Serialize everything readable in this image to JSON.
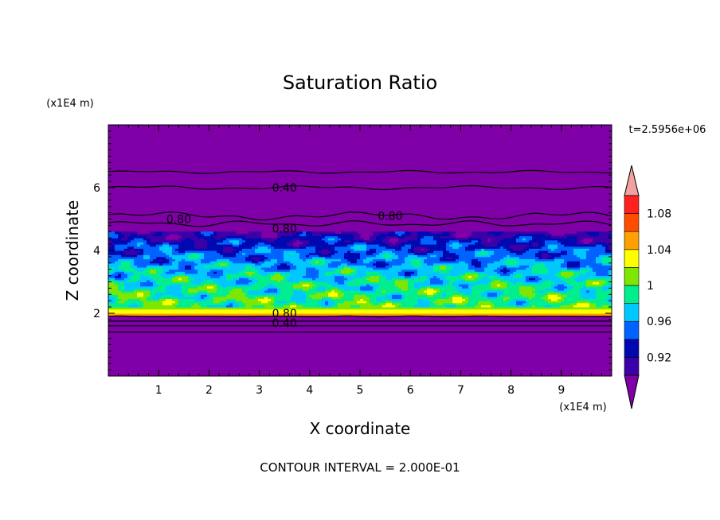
{
  "chart_data": {
    "type": "heatmap",
    "title": "Saturation Ratio",
    "xlabel": "X coordinate",
    "ylabel": "Z coordinate",
    "x_unit_label": "(x1E4 m)",
    "y_unit_label": "(x1E4 m)",
    "time_label": "t=2.5956e+06",
    "footer": "CONTOUR INTERVAL = 2.000E-01",
    "xlim": [
      0,
      10
    ],
    "ylim": [
      0,
      8
    ],
    "x_ticks": [
      1,
      2,
      3,
      4,
      5,
      6,
      7,
      8,
      9
    ],
    "y_ticks": [
      2,
      4,
      6
    ],
    "colorbar": {
      "levels": [
        0.9,
        0.92,
        0.94,
        0.96,
        0.98,
        1.0,
        1.02,
        1.04,
        1.06,
        1.08,
        1.1
      ],
      "tick_labels": [
        "0.92",
        "0.96",
        "1",
        "1.04",
        "1.08"
      ],
      "tick_values": [
        0.92,
        0.96,
        1.0,
        1.04,
        1.08
      ],
      "colors": [
        "#7f00a6",
        "#3c00a8",
        "#0008b0",
        "#0062ff",
        "#00c8ff",
        "#00ee8e",
        "#7ee600",
        "#ffff00",
        "#ffa000",
        "#ff4c00",
        "#ff2020",
        "#f2a0a0"
      ]
    },
    "contour_labels": [
      {
        "text": "0.40",
        "x": 3.5,
        "z": 6.0
      },
      {
        "text": "0.80",
        "x": 1.4,
        "z": 5.0
      },
      {
        "text": "0.80",
        "x": 5.6,
        "z": 5.1
      },
      {
        "text": "0.80",
        "x": 3.5,
        "z": 4.7
      },
      {
        "text": "0.80",
        "x": 3.5,
        "z": 2.0
      },
      {
        "text": "0.40",
        "x": 3.5,
        "z": 1.7
      }
    ]
  }
}
